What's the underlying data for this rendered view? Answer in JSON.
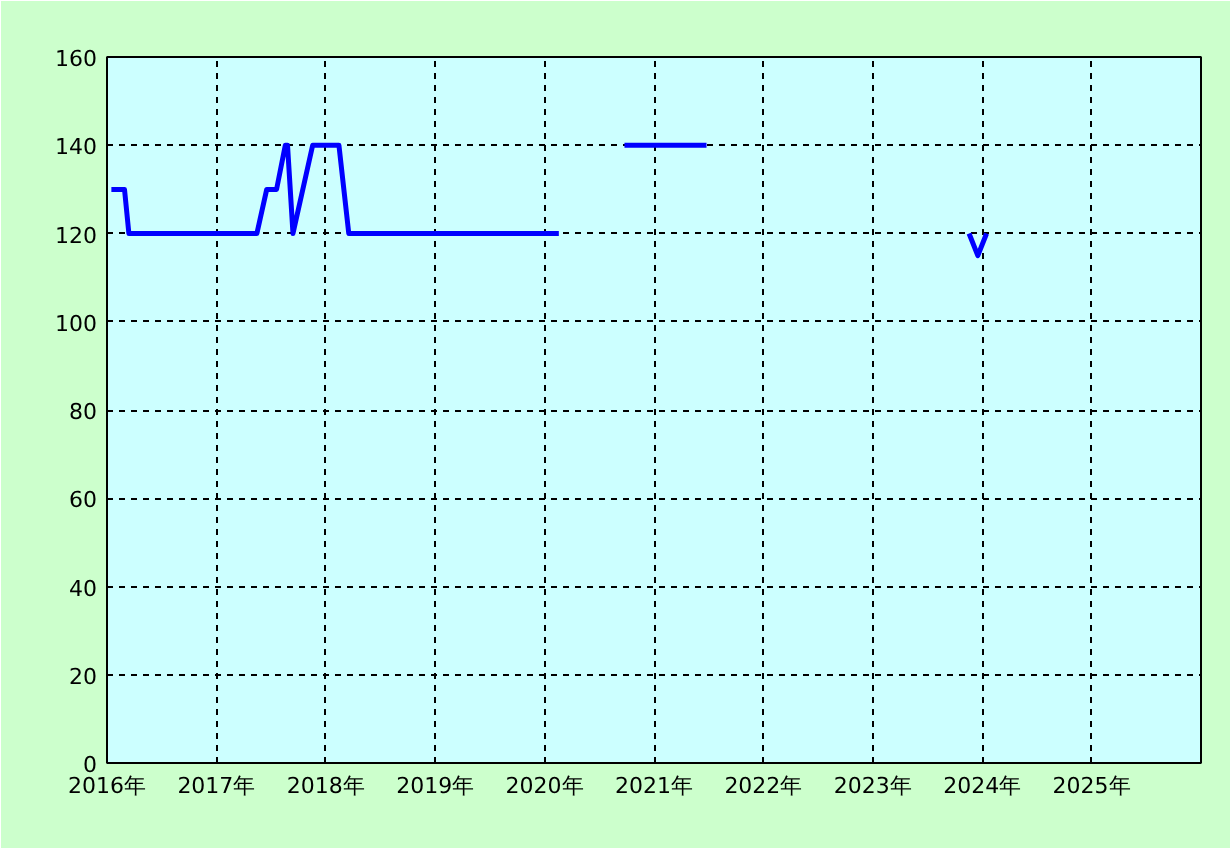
{
  "chart_data": {
    "type": "line",
    "x": [
      2016.04,
      2016.16,
      2016.2,
      2017.37,
      2017.46,
      2017.55,
      2017.63,
      2017.65,
      2017.7,
      2017.88,
      2018.12,
      2018.21,
      2020.13,
      2020.4,
      2020.73,
      2021.48,
      2022.5,
      2023.88,
      2023.96,
      2024.04
    ],
    "series": [
      {
        "color": "#0000ff",
        "values": [
          130,
          130,
          120,
          120,
          130,
          130,
          140,
          140,
          120,
          140,
          140,
          120,
          120,
          null,
          140,
          140,
          null,
          120,
          115,
          120
        ]
      }
    ],
    "xlim": [
      2016,
      2026
    ],
    "xticks": [
      {
        "value": 2016,
        "label": "2016年"
      },
      {
        "value": 2017,
        "label": "2017年"
      },
      {
        "value": 2018,
        "label": "2018年"
      },
      {
        "value": 2019,
        "label": "2019年"
      },
      {
        "value": 2020,
        "label": "2020年"
      },
      {
        "value": 2021,
        "label": "2021年"
      },
      {
        "value": 2022,
        "label": "2022年"
      },
      {
        "value": 2023,
        "label": "2023年"
      },
      {
        "value": 2024,
        "label": "2024年"
      },
      {
        "value": 2025,
        "label": "2025年"
      }
    ],
    "ylim": [
      0,
      160
    ],
    "yticks": [
      0,
      20,
      40,
      60,
      80,
      100,
      120,
      140,
      160
    ],
    "grid": true,
    "marker": "none",
    "line_style": "solid"
  }
}
